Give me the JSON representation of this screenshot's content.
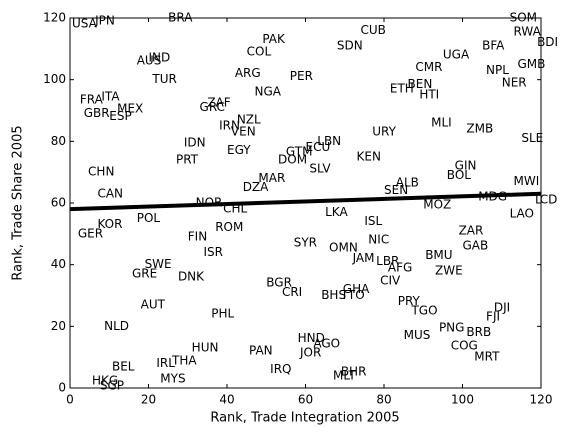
{
  "chart_data": {
    "type": "scatter",
    "x_label": "Rank, Trade Integration 2005",
    "y_label": "Rank, Trade Share 2005",
    "xlim": [
      0,
      120
    ],
    "xticks": [
      0,
      20,
      40,
      60,
      80,
      100,
      120
    ],
    "ylim": [
      0,
      120
    ],
    "yticks": [
      0,
      20,
      40,
      60,
      80,
      100,
      120
    ],
    "color": "#000000",
    "labels": [
      "USA",
      "JPN",
      "BRA",
      "SOM",
      "RWA",
      "BDI",
      "PAK",
      "COL",
      "SDN",
      "CUB",
      "UGA",
      "BFA",
      "GMB",
      "NPL",
      "NER",
      "CMR",
      "ETH",
      "BEN",
      "HTI",
      "MLI",
      "ZMB",
      "SLE",
      "AUS",
      "IND",
      "TUR",
      "ARG",
      "PER",
      "NGA",
      "FRA",
      "ITA",
      "MEX",
      "GBR",
      "ESP",
      "ZAF",
      "GRC",
      "NZL",
      "IRN",
      "VEN",
      "IDN",
      "EGY",
      "PRT",
      "CHN",
      "CAN",
      "LBN",
      "ECU",
      "GTM",
      "DOM",
      "SLV",
      "MAR",
      "DZA",
      "KEN",
      "URY",
      "GIN",
      "BOL",
      "MWI",
      "ALB",
      "SEN",
      "MDG",
      "TCD",
      "MOZ",
      "LAO",
      "NOR",
      "CHL",
      "POL",
      "KOR",
      "ROM",
      "GER",
      "FIN",
      "LKA",
      "ISL",
      "ZAR",
      "GAB",
      "NIC",
      "SYR",
      "OMN",
      "ISR",
      "JAM",
      "LBR",
      "AFG",
      "BMU",
      "ZWE",
      "SWE",
      "GRE",
      "DNK",
      "CIV",
      "BGR",
      "CRI",
      "GHA",
      "BHS",
      "TTO",
      "PRY",
      "TGO",
      "DJI",
      "FJI",
      "AUT",
      "PHL",
      "NLD",
      "MUS",
      "PNG",
      "BRB",
      "COG",
      "MRT",
      "HND",
      "AGO",
      "JOR",
      "PAN",
      "HUN",
      "IRL",
      "THA",
      "IRQ",
      "BHR",
      "MLT",
      "BEL",
      "MYS",
      "HKG",
      "SGP"
    ],
    "x": [
      0.5,
      6.4,
      25,
      112,
      113,
      119,
      49,
      45,
      68,
      74,
      95,
      105,
      114,
      106,
      110,
      88,
      81.5,
      86,
      89,
      92,
      101,
      115,
      17,
      20,
      21,
      42,
      56,
      47,
      2.5,
      8,
      12,
      3.5,
      10,
      35,
      33,
      42.5,
      38,
      41,
      29,
      40,
      27,
      4.6,
      7,
      63,
      60,
      55,
      53,
      61,
      48,
      44,
      73,
      77,
      98,
      96,
      113,
      83,
      80,
      104,
      118,
      90,
      112,
      32,
      39,
      17,
      7,
      37,
      2,
      30,
      65,
      75,
      99,
      100,
      76,
      57,
      66,
      34,
      72,
      78,
      81,
      90.5,
      93,
      19,
      15.8,
      27.5,
      79,
      50,
      54,
      69.5,
      64,
      69,
      83.5,
      87,
      108,
      106,
      18,
      36,
      8.7,
      85,
      94,
      101,
      97,
      103,
      58,
      62,
      58.6,
      45.6,
      31,
      22,
      26,
      51,
      69,
      67,
      10.7,
      23,
      5.6,
      7.6
    ],
    "values": [
      118,
      119,
      120,
      120,
      115.5,
      112,
      113,
      109,
      111,
      116,
      108,
      111,
      105,
      103,
      99,
      104,
      97,
      98.5,
      95,
      86,
      84,
      81,
      106,
      107,
      100,
      102,
      101,
      96,
      93.4,
      94.4,
      90.5,
      89,
      88,
      92.4,
      91,
      87,
      85,
      83,
      79.5,
      77,
      74,
      70,
      63,
      80,
      78,
      76.5,
      74,
      71,
      68,
      65,
      75,
      83,
      72,
      69,
      67,
      66.5,
      64,
      62,
      61,
      59.4,
      56.4,
      60,
      58,
      55,
      53,
      52,
      50,
      49,
      57,
      54,
      51,
      46,
      48,
      47,
      45.4,
      44,
      42,
      41,
      39,
      43,
      38,
      40,
      37,
      36,
      34.7,
      34,
      31,
      32,
      30,
      30,
      28,
      25,
      26,
      23,
      27,
      24,
      20,
      17,
      19.5,
      18,
      13.6,
      10,
      16,
      14.3,
      11.4,
      12,
      13,
      8,
      8.8,
      6,
      5.2,
      3.9,
      6.8,
      3,
      2.3,
      0.6
    ],
    "fit": {
      "x": [
        0,
        120
      ],
      "values": [
        58,
        63
      ],
      "color": "#000000"
    }
  }
}
